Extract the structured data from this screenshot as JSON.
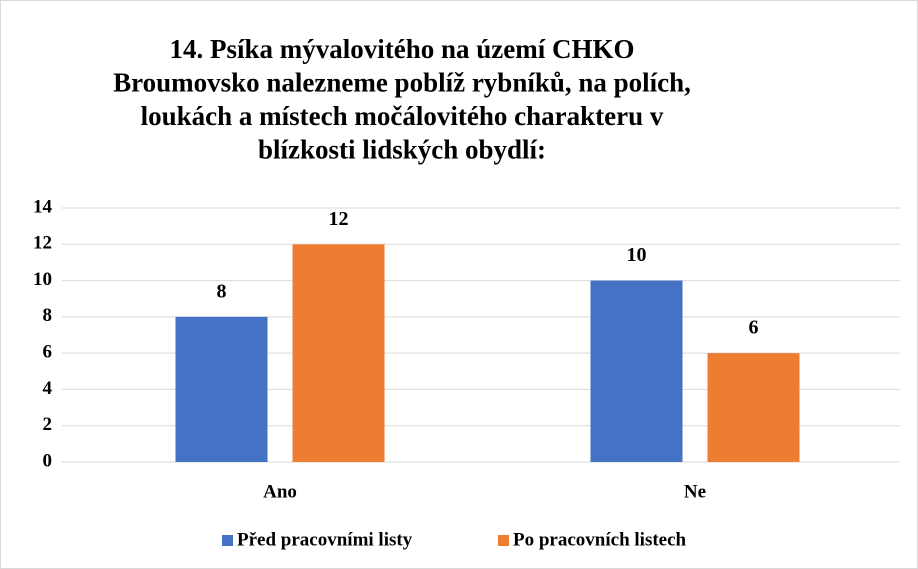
{
  "chart_data": {
    "type": "bar",
    "title": [
      "14. Psíka mývalovitého na území CHKO",
      "Broumovsko nalezneme poblíž rybníků, na polích,",
      "loukách a místech močálovitého charakteru v",
      "blízkosti lidských obydlí:"
    ],
    "categories": [
      "Ano",
      "Ne"
    ],
    "series": [
      {
        "name": "Před pracovními listy",
        "color": "#4472c4",
        "values": [
          8,
          10
        ]
      },
      {
        "name": "Po pracovních listech",
        "color": "#ed7d31",
        "values": [
          12,
          6
        ]
      }
    ],
    "ylim": [
      0,
      14
    ],
    "yticks": [
      0,
      2,
      4,
      6,
      8,
      10,
      12,
      14
    ],
    "grid": true,
    "legend": "bottom"
  }
}
